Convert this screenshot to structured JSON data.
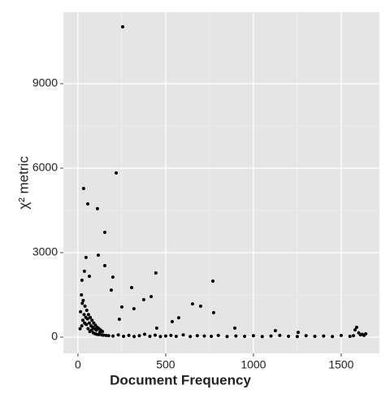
{
  "chart_data": {
    "type": "scatter",
    "xlabel": "Document Frequency",
    "ylabel": "χ² metric",
    "x": [
      255,
      218,
      32,
      56,
      111,
      153,
      153,
      46,
      116,
      444,
      769,
      306,
      653,
      699,
      773,
      574,
      537,
      199,
      190,
      23,
      37,
      65,
      417,
      375,
      319,
      250,
      236,
      449,
      894,
      1588,
      1579,
      1125,
      1255,
      20,
      30,
      40,
      50,
      60,
      70,
      80,
      90,
      100,
      110,
      120,
      130,
      140,
      15,
      25,
      35,
      45,
      55,
      65,
      75,
      85,
      95,
      105,
      125,
      12,
      22,
      28,
      38,
      48,
      58,
      68,
      78,
      88,
      98,
      108,
      118,
      135,
      145,
      160,
      175,
      200,
      230,
      260,
      290,
      320,
      350,
      380,
      410,
      440,
      470,
      500,
      530,
      560,
      600,
      640,
      680,
      720,
      760,
      800,
      850,
      900,
      950,
      1000,
      1050,
      1100,
      1150,
      1200,
      1250,
      1300,
      1350,
      1400,
      1450,
      1500,
      1550,
      1600,
      1620,
      1640,
      1610,
      1630,
      1570
    ],
    "values": [
      11020,
      5830,
      5280,
      4730,
      4560,
      3720,
      2540,
      2830,
      2910,
      2280,
      1990,
      1760,
      1180,
      1100,
      870,
      690,
      550,
      2130,
      1670,
      2020,
      2340,
      2160,
      1440,
      1330,
      1010,
      1070,
      635,
      320,
      320,
      350,
      260,
      230,
      170,
      1500,
      1300,
      1100,
      950,
      800,
      700,
      600,
      500,
      420,
      350,
      300,
      250,
      200,
      900,
      1200,
      800,
      700,
      650,
      500,
      400,
      350,
      300,
      250,
      180,
      300,
      400,
      600,
      500,
      450,
      300,
      200,
      250,
      150,
      120,
      100,
      90,
      80,
      70,
      60,
      50,
      40,
      80,
      30,
      60,
      20,
      50,
      100,
      30,
      70,
      20,
      40,
      60,
      30,
      80,
      20,
      50,
      40,
      30,
      60,
      20,
      40,
      30,
      50,
      20,
      40,
      60,
      30,
      20,
      50,
      30,
      40,
      20,
      60,
      30,
      150,
      100,
      120,
      80,
      60,
      50
    ],
    "color": "#000000",
    "xlim": [
      -83,
      1718
    ],
    "xticks": [
      0,
      500,
      1000,
      1500
    ],
    "ylim": [
      -577,
      11538
    ],
    "yticks": [
      0,
      3000,
      6000,
      9000
    ],
    "grid": true
  }
}
